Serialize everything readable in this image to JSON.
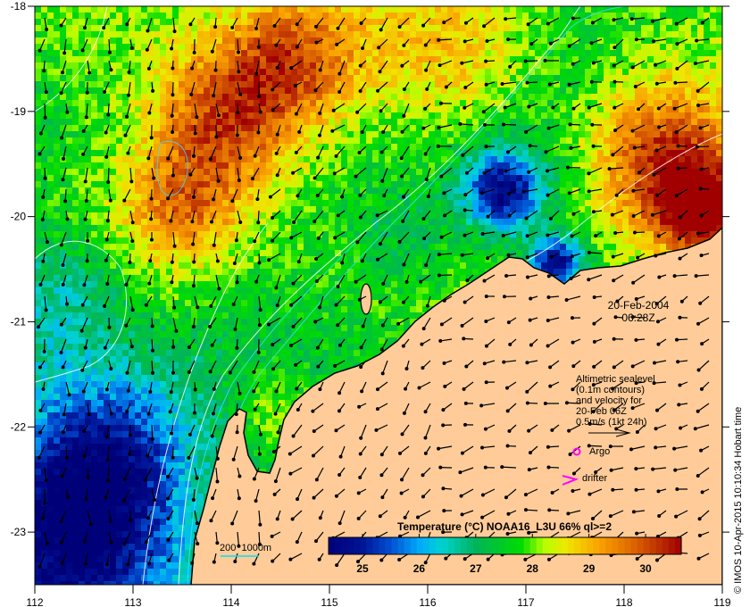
{
  "map": {
    "lon_range": [
      112,
      119
    ],
    "lat_range": [
      -23.5,
      -18
    ],
    "x_ticks": [
      "112",
      "113",
      "114",
      "115",
      "116",
      "117",
      "118",
      "119"
    ],
    "y_ticks": [
      "-18",
      "-19",
      "-20",
      "-21",
      "-22",
      "-23"
    ],
    "land_color": "#ffcc99",
    "ocean_color": "#000080"
  },
  "annotation": {
    "date": "20-Feb-2004",
    "time": "06:28Z"
  },
  "legend": {
    "lines": [
      "Altimetric sealevel",
      "(0.1m contours)",
      "and velocity for",
      "20-Feb 06Z",
      "0.5m/s (1kt 24h)"
    ],
    "argo_label": "Argo",
    "drifter_label": "drifter",
    "marker_color": "#ff00ff"
  },
  "depth_scale": {
    "label": "200  1000m",
    "color": "#00e0ff"
  },
  "colorbar": {
    "title": "Temperature (°C) NOAA16_L3U 66% ql>=2",
    "ticks": [
      "25",
      "26",
      "27",
      "28",
      "29",
      "30"
    ],
    "range": [
      24.4,
      30.63
    ]
  },
  "credit": "© IMOS 10-Apr-2015 10:10:34 Hobart time"
}
